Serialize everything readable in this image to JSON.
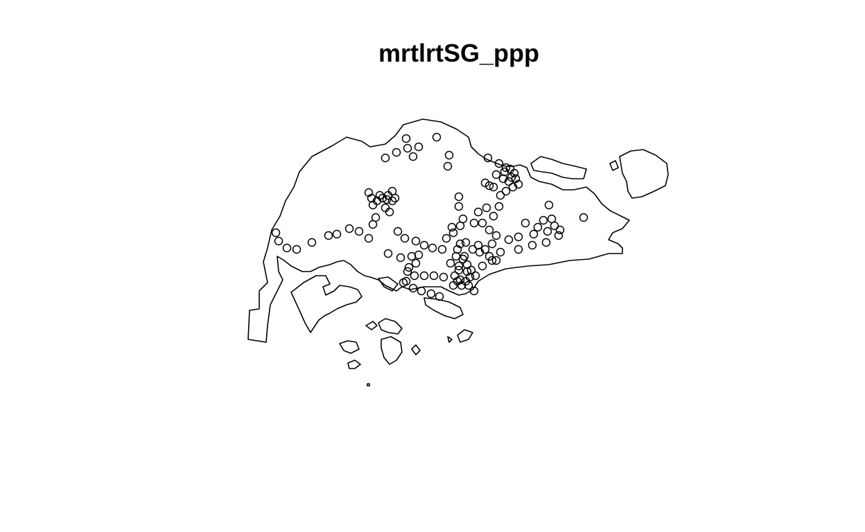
{
  "title": "mrtlrtSG_ppp",
  "colors": {
    "background": "#ffffff",
    "outline": "#000000",
    "points": "#000000"
  },
  "marker": "open-circle"
}
